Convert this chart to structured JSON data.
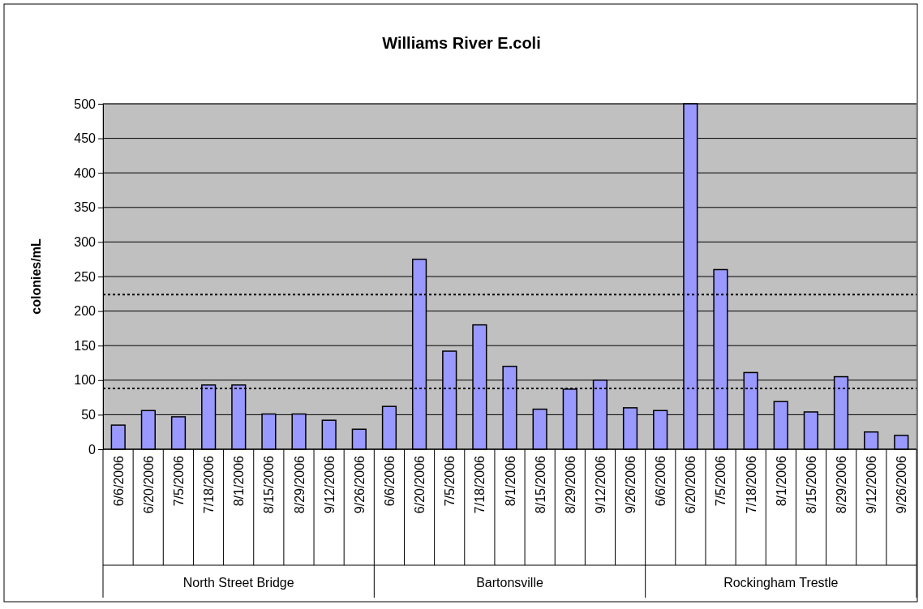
{
  "chart_data": {
    "type": "bar",
    "title": "Williams River E.coli",
    "ylabel": "colonies/mL",
    "categories": [
      "6/6/2006",
      "6/20/2006",
      "7/5/2006",
      "7/18/2006",
      "8/1/2006",
      "8/15/2006",
      "8/29/2006",
      "9/12/2006",
      "9/26/2006",
      "6/6/2006",
      "6/20/2006",
      "7/5/2006",
      "7/18/2006",
      "8/1/2006",
      "8/15/2006",
      "8/29/2006",
      "9/12/2006",
      "9/26/2006",
      "6/6/2006",
      "6/20/2006",
      "7/5/2006",
      "7/18/2006",
      "8/1/2006",
      "8/15/2006",
      "8/29/2006",
      "9/12/2006",
      "9/26/2006"
    ],
    "values": [
      35,
      56,
      47,
      93,
      93,
      51,
      51,
      42,
      29,
      62,
      275,
      142,
      180,
      120,
      58,
      87,
      100,
      60,
      56,
      500,
      260,
      111,
      69,
      54,
      105,
      25,
      20
    ],
    "color": "#9999ff",
    "ylim": [
      0,
      500
    ],
    "yticks": [
      0,
      50,
      100,
      150,
      200,
      250,
      300,
      350,
      400,
      450,
      500
    ],
    "grid": "y",
    "ref_lines": [
      {
        "axis": "y",
        "value": 224,
        "line_style": "dotted",
        "color": "#000000"
      },
      {
        "axis": "y",
        "value": 88,
        "line_style": "dotted",
        "color": "#000000"
      }
    ],
    "annotations": [
      "North Street Bridge",
      "Bartonsville",
      "Rockingham Trestle"
    ]
  }
}
